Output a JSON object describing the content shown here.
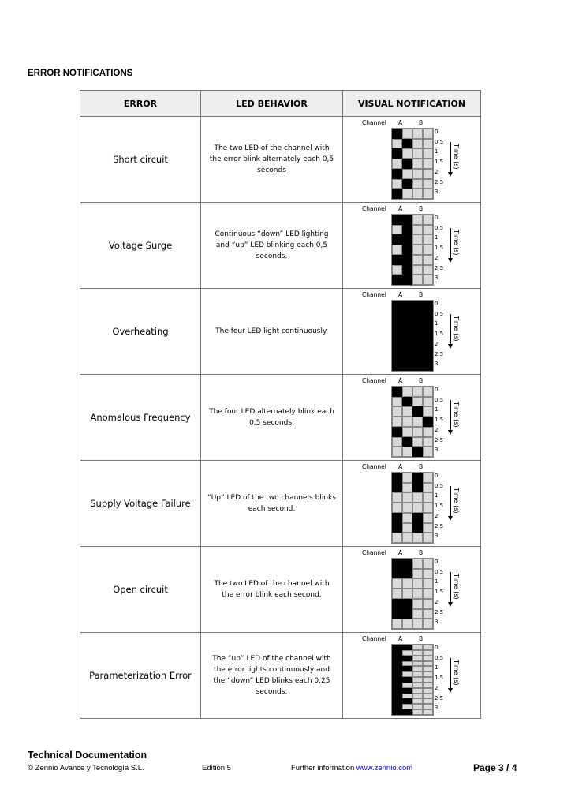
{
  "section_title": "ERROR NOTIFICATIONS",
  "headers": [
    "ERROR",
    "LED BEHAVIOR",
    "VISUAL NOTIFICATION"
  ],
  "chart_labels": {
    "channel": "Channel",
    "a": "A",
    "b": "B",
    "time": "Time (s)",
    "ticks": [
      "0",
      "0.5",
      "1",
      "1.5",
      "2",
      "2.5",
      "3"
    ]
  },
  "rows": [
    {
      "error": "Short circuit",
      "behavior": "The two LED of the channel with the error blink alternately each 0,5 seconds",
      "grid": [
        "1000",
        "0100",
        "1000",
        "0100",
        "1000",
        "0100",
        "1000"
      ]
    },
    {
      "error": "Voltage Surge",
      "behavior": "Continuous “down” LED lighting and “up” LED blinking each 0,5 seconds.",
      "grid": [
        "1100",
        "0100",
        "1100",
        "0100",
        "1100",
        "0100",
        "1100"
      ]
    },
    {
      "error": "Overheating",
      "behavior": "The four LED light continuously.",
      "grid": [
        "1111",
        "1111",
        "1111",
        "1111",
        "1111",
        "1111",
        "1111"
      ]
    },
    {
      "error": "Anomalous Frequency",
      "behavior": "The four LED alternately blink each 0,5 seconds.",
      "grid": [
        "1000",
        "0100",
        "0010",
        "0001",
        "1000",
        "0100",
        "0010"
      ]
    },
    {
      "error": "Supply Voltage Failure",
      "behavior": "“Up” LED of the two channels blinks each second.",
      "grid": [
        "1010",
        "1010",
        "0000",
        "0000",
        "1010",
        "1010",
        "0000"
      ]
    },
    {
      "error": "Open circuit",
      "behavior": "The two LED of the channel with the error blink each second.",
      "grid": [
        "1100",
        "1100",
        "0000",
        "0000",
        "1100",
        "1100",
        "0000"
      ]
    },
    {
      "error": "Parameterization Error",
      "behavior": "The “up” LED of the channel with the error lights continuously and the “down” LED blinks each 0,25 seconds.",
      "grid": [
        "1100",
        "1000",
        "1100",
        "1000",
        "1100",
        "1000",
        "1100",
        "1000",
        "1100",
        "1000",
        "1100",
        "1000",
        "1100"
      ]
    }
  ],
  "footer": {
    "title": "Technical Documentation",
    "copyright": "© Zennio Avance y Tecnología S.L.",
    "edition": "Edition 5",
    "info": "Further information ",
    "link": "www.zennio.com",
    "page": "Page 3 / 4"
  }
}
